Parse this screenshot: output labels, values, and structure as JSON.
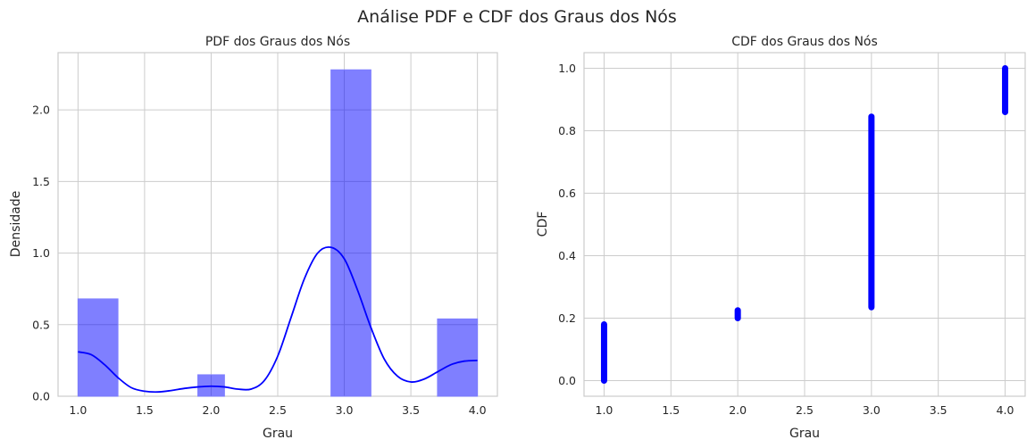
{
  "suptitle": "Análise PDF e CDF dos Graus dos Nós",
  "chart_data": [
    {
      "type": "bar",
      "title": "PDF dos Graus dos Nós",
      "xlabel": "Grau",
      "ylabel": "Densidade",
      "xlim": [
        0.85,
        4.15
      ],
      "ylim": [
        0,
        2.4
      ],
      "xticks": [
        "1.0",
        "1.5",
        "2.0",
        "2.5",
        "3.0",
        "3.5",
        "4.0"
      ],
      "yticks": [
        "0.0",
        "0.5",
        "1.0",
        "1.5",
        "2.0"
      ],
      "grid": true,
      "bar_color": "#0000ff",
      "bars": [
        {
          "x0": 1.0,
          "x1": 1.3,
          "value": 0.68
        },
        {
          "x0": 1.9,
          "x1": 2.1,
          "value": 0.15
        },
        {
          "x0": 2.9,
          "x1": 3.2,
          "value": 2.28
        },
        {
          "x0": 3.7,
          "x1": 4.0,
          "value": 0.54
        }
      ],
      "kde": {
        "color": "#0000ff",
        "x": [
          1.0,
          1.1,
          1.2,
          1.3,
          1.4,
          1.5,
          1.6,
          1.7,
          1.8,
          1.9,
          2.0,
          2.1,
          2.2,
          2.3,
          2.4,
          2.5,
          2.6,
          2.7,
          2.8,
          2.9,
          3.0,
          3.1,
          3.2,
          3.3,
          3.4,
          3.5,
          3.6,
          3.7,
          3.8,
          3.9,
          4.0
        ],
        "y": [
          0.31,
          0.29,
          0.22,
          0.13,
          0.06,
          0.035,
          0.03,
          0.04,
          0.055,
          0.065,
          0.07,
          0.065,
          0.05,
          0.05,
          0.11,
          0.28,
          0.55,
          0.82,
          1.0,
          1.04,
          0.96,
          0.74,
          0.48,
          0.26,
          0.14,
          0.1,
          0.12,
          0.17,
          0.22,
          0.245,
          0.25
        ]
      }
    },
    {
      "type": "scatter",
      "title": "CDF dos Graus dos Nós",
      "xlabel": "Grau",
      "ylabel": "CDF",
      "xlim": [
        0.85,
        4.15
      ],
      "ylim": [
        -0.05,
        1.05
      ],
      "xticks": [
        "1.0",
        "1.5",
        "2.0",
        "2.5",
        "3.0",
        "3.5",
        "4.0"
      ],
      "yticks": [
        "0.0",
        "0.2",
        "0.4",
        "0.6",
        "0.8",
        "1.0"
      ],
      "grid": true,
      "point_color": "#0000ff",
      "segments": [
        {
          "x": 1.0,
          "y0": 0.0,
          "y1": 0.18
        },
        {
          "x": 2.0,
          "y0": 0.2,
          "y1": 0.225
        },
        {
          "x": 3.0,
          "y0": 0.235,
          "y1": 0.845
        },
        {
          "x": 4.0,
          "y0": 0.86,
          "y1": 1.0
        }
      ]
    }
  ]
}
